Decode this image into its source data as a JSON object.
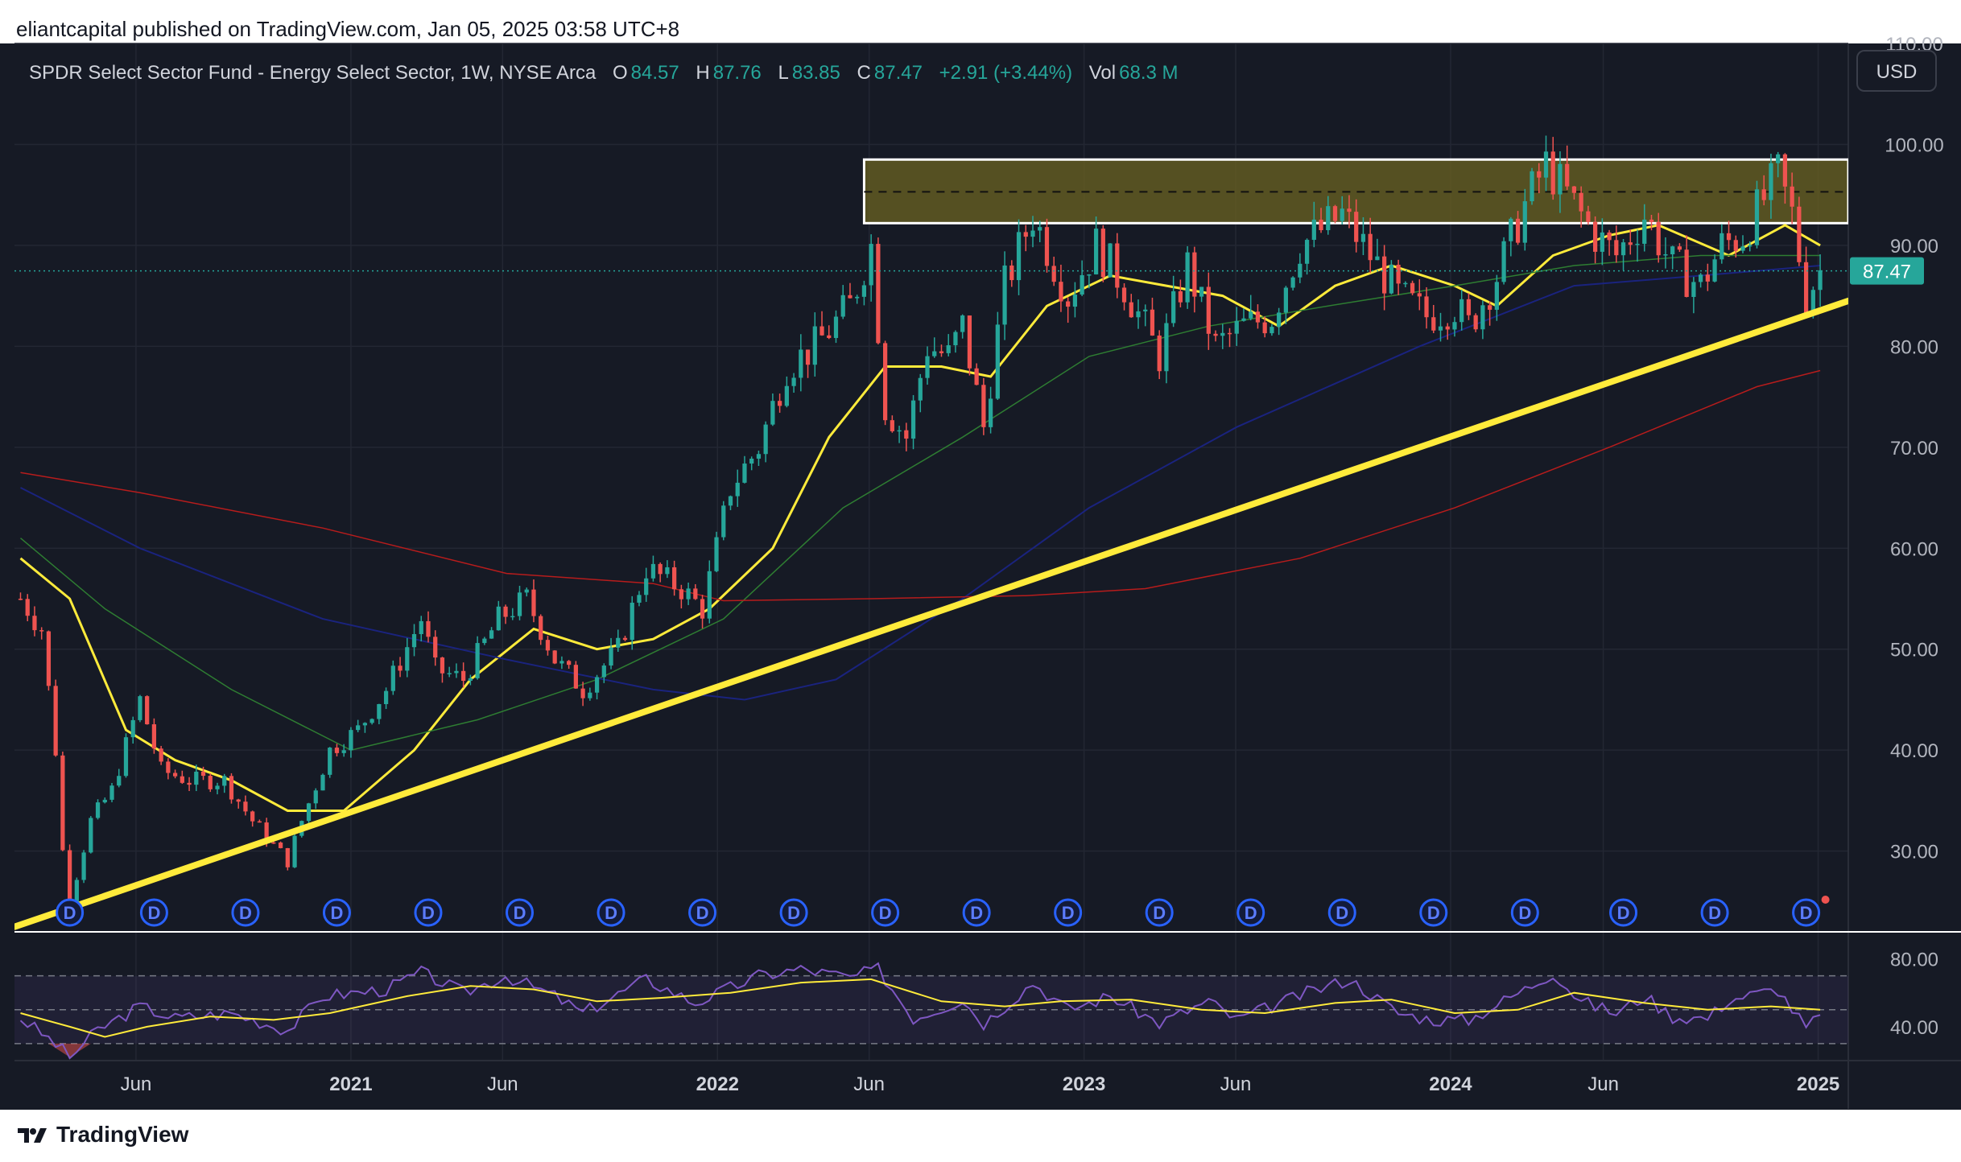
{
  "banner": "eliantcapital published on TradingView.com, Jan 05, 2025 03:58 UTC+8",
  "header": {
    "symbol": "SPDR Select Sector Fund - Energy Select Sector, 1W, NYSE Arca",
    "o_label": "O",
    "o_value": "84.57",
    "h_label": "H",
    "h_value": "87.76",
    "l_label": "L",
    "l_value": "83.85",
    "c_label": "C",
    "c_value": "87.47",
    "change": "+2.91 (+3.44%)",
    "vol_label": "Vol",
    "vol_value": "68.3 M"
  },
  "currency_button": "USD",
  "brand": "TradingView",
  "colors": {
    "background": "#161a25",
    "up": "#26a69a",
    "down": "#ef5350",
    "ma_yellow": "#ffeb3b",
    "ma_green": "#2e7d32",
    "ma_blue": "#1a237e",
    "ma_red": "#b71c1c",
    "trendline": "#ffeb3b",
    "resistance_zone": "#6b6321",
    "rsi_line": "#7e57c2",
    "rsi_ma": "#ffeb3b",
    "last_price_badge": "#26a69a",
    "dividend_marker": "#2962ff"
  },
  "chart_data": {
    "type": "candlestick",
    "interval": "1W",
    "price_axis": {
      "min": 22,
      "max": 110,
      "ticks": [
        "30.00",
        "40.00",
        "50.00",
        "60.00",
        "70.00",
        "80.00",
        "90.00",
        "100.00",
        "110.00"
      ]
    },
    "time_axis": {
      "start": "2020-02-01",
      "end": "2025-01-31",
      "labels": [
        {
          "label": "Jun",
          "date": "2020-06-01",
          "bold": false
        },
        {
          "label": "2021",
          "date": "2021-01-01",
          "bold": true
        },
        {
          "label": "Jun",
          "date": "2021-06-01",
          "bold": false
        },
        {
          "label": "2022",
          "date": "2022-01-01",
          "bold": true
        },
        {
          "label": "Jun",
          "date": "2022-06-01",
          "bold": false
        },
        {
          "label": "2023",
          "date": "2023-01-01",
          "bold": true
        },
        {
          "label": "Jun",
          "date": "2023-06-01",
          "bold": false
        },
        {
          "label": "2024",
          "date": "2024-01-01",
          "bold": true
        },
        {
          "label": "Jun",
          "date": "2024-06-01",
          "bold": false
        },
        {
          "label": "2025",
          "date": "2025-01-01",
          "bold": true
        }
      ]
    },
    "last_price": "87.47",
    "price_path": [
      [
        "2020-02-07",
        55
      ],
      [
        "2020-02-28",
        52
      ],
      [
        "2020-03-13",
        40
      ],
      [
        "2020-03-20",
        30
      ],
      [
        "2020-03-27",
        25
      ],
      [
        "2020-04-17",
        33
      ],
      [
        "2020-05-08",
        36
      ],
      [
        "2020-06-05",
        45
      ],
      [
        "2020-06-26",
        38
      ],
      [
        "2020-07-24",
        37
      ],
      [
        "2020-08-28",
        37
      ],
      [
        "2020-09-25",
        33
      ],
      [
        "2020-10-30",
        29
      ],
      [
        "2020-11-13",
        33
      ],
      [
        "2020-12-11",
        40
      ],
      [
        "2021-01-08",
        42
      ],
      [
        "2021-02-05",
        46
      ],
      [
        "2021-03-12",
        53
      ],
      [
        "2021-03-26",
        48
      ],
      [
        "2021-04-23",
        47
      ],
      [
        "2021-05-28",
        53
      ],
      [
        "2021-06-25",
        55
      ],
      [
        "2021-07-23",
        49
      ],
      [
        "2021-08-20",
        46
      ],
      [
        "2021-09-24",
        50
      ],
      [
        "2021-10-22",
        58
      ],
      [
        "2021-11-26",
        56
      ],
      [
        "2021-12-17",
        54
      ],
      [
        "2022-01-14",
        66
      ],
      [
        "2022-02-11",
        70
      ],
      [
        "2022-03-11",
        78
      ],
      [
        "2022-04-08",
        80
      ],
      [
        "2022-05-13",
        84
      ],
      [
        "2022-06-03",
        90
      ],
      [
        "2022-06-17",
        74
      ],
      [
        "2022-07-08",
        71
      ],
      [
        "2022-07-29",
        80
      ],
      [
        "2022-08-19",
        79
      ],
      [
        "2022-09-02",
        82
      ],
      [
        "2022-09-23",
        72
      ],
      [
        "2022-10-14",
        86
      ],
      [
        "2022-11-11",
        93
      ],
      [
        "2022-12-16",
        85
      ],
      [
        "2023-01-13",
        90
      ],
      [
        "2023-02-10",
        86
      ],
      [
        "2023-03-17",
        79
      ],
      [
        "2023-04-14",
        88
      ],
      [
        "2023-05-12",
        80
      ],
      [
        "2023-06-09",
        82
      ],
      [
        "2023-07-07",
        83
      ],
      [
        "2023-08-04",
        90
      ],
      [
        "2023-09-15",
        93
      ],
      [
        "2023-10-13",
        89
      ],
      [
        "2023-11-10",
        85
      ],
      [
        "2023-12-08",
        83
      ],
      [
        "2024-01-05",
        84
      ],
      [
        "2024-01-19",
        82
      ],
      [
        "2024-02-16",
        87
      ],
      [
        "2024-03-15",
        94
      ],
      [
        "2024-04-05",
        98
      ],
      [
        "2024-04-26",
        95
      ],
      [
        "2024-05-24",
        91
      ],
      [
        "2024-06-14",
        89
      ],
      [
        "2024-07-12",
        93
      ],
      [
        "2024-08-09",
        88
      ],
      [
        "2024-09-06",
        86
      ],
      [
        "2024-09-27",
        90
      ],
      [
        "2024-10-18",
        91
      ],
      [
        "2024-11-22",
        97
      ],
      [
        "2024-12-06",
        93
      ],
      [
        "2024-12-20",
        85
      ],
      [
        "2025-01-03",
        87.47
      ]
    ],
    "moving_averages": [
      {
        "color": "#ffeb3b",
        "width": 3,
        "points": [
          [
            "2020-02-07",
            59
          ],
          [
            "2020-03-27",
            55
          ],
          [
            "2020-05-22",
            42
          ],
          [
            "2020-07-10",
            39
          ],
          [
            "2020-09-04",
            37
          ],
          [
            "2020-10-30",
            34
          ],
          [
            "2020-12-25",
            34
          ],
          [
            "2021-03-05",
            40
          ],
          [
            "2021-04-30",
            47
          ],
          [
            "2021-07-02",
            52
          ],
          [
            "2021-09-03",
            50
          ],
          [
            "2021-10-29",
            51
          ],
          [
            "2021-12-24",
            54
          ],
          [
            "2022-02-25",
            60
          ],
          [
            "2022-04-22",
            71
          ],
          [
            "2022-06-17",
            78
          ],
          [
            "2022-08-12",
            78
          ],
          [
            "2022-09-30",
            77
          ],
          [
            "2022-11-25",
            84
          ],
          [
            "2023-01-27",
            87
          ],
          [
            "2023-03-24",
            86
          ],
          [
            "2023-05-19",
            85
          ],
          [
            "2023-07-14",
            82
          ],
          [
            "2023-09-08",
            86
          ],
          [
            "2023-11-03",
            88
          ],
          [
            "2024-01-05",
            86
          ],
          [
            "2024-02-16",
            84
          ],
          [
            "2024-04-12",
            89
          ],
          [
            "2024-06-07",
            91
          ],
          [
            "2024-07-26",
            92
          ],
          [
            "2024-10-04",
            89
          ],
          [
            "2024-11-29",
            92
          ],
          [
            "2025-01-03",
            90
          ]
        ]
      },
      {
        "color": "#2e7d32",
        "width": 1.5,
        "points": [
          [
            "2020-02-07",
            61
          ],
          [
            "2020-05-01",
            54
          ],
          [
            "2020-09-04",
            46
          ],
          [
            "2021-01-01",
            40
          ],
          [
            "2021-05-07",
            43
          ],
          [
            "2021-09-03",
            47
          ],
          [
            "2022-01-07",
            53
          ],
          [
            "2022-05-06",
            64
          ],
          [
            "2022-09-02",
            71
          ],
          [
            "2023-01-06",
            79
          ],
          [
            "2023-05-05",
            82
          ],
          [
            "2023-09-01",
            84
          ],
          [
            "2024-01-05",
            86
          ],
          [
            "2024-05-03",
            88
          ],
          [
            "2024-09-06",
            89
          ],
          [
            "2025-01-03",
            89
          ]
        ]
      },
      {
        "color": "#1a237e",
        "width": 2,
        "points": [
          [
            "2020-02-07",
            66
          ],
          [
            "2020-06-05",
            60
          ],
          [
            "2020-12-04",
            53
          ],
          [
            "2021-06-04",
            49
          ],
          [
            "2021-10-29",
            46
          ],
          [
            "2022-01-28",
            45
          ],
          [
            "2022-04-29",
            47
          ],
          [
            "2022-09-02",
            55
          ],
          [
            "2023-01-06",
            64
          ],
          [
            "2023-06-02",
            72
          ],
          [
            "2023-12-01",
            80
          ],
          [
            "2024-05-03",
            86
          ],
          [
            "2024-09-06",
            87
          ],
          [
            "2025-01-03",
            88
          ]
        ]
      },
      {
        "color": "#b71c1c",
        "width": 1.5,
        "points": [
          [
            "2020-02-07",
            67.5
          ],
          [
            "2020-06-05",
            65.5
          ],
          [
            "2020-12-04",
            62
          ],
          [
            "2021-06-05",
            57.5
          ],
          [
            "2021-10-29",
            56.5
          ],
          [
            "2022-01-07",
            54.8
          ],
          [
            "2022-06-03",
            55
          ],
          [
            "2022-11-04",
            55.3
          ],
          [
            "2023-03-03",
            56
          ],
          [
            "2023-08-04",
            59
          ],
          [
            "2024-01-05",
            64
          ],
          [
            "2024-06-07",
            70
          ],
          [
            "2024-11-01",
            76
          ],
          [
            "2025-01-03",
            77.6
          ]
        ]
      }
    ],
    "trendline": {
      "from": [
        "2020-02-01",
        22.5
      ],
      "to": [
        "2025-01-31",
        84.5
      ]
    },
    "resistance_zone": {
      "from": "2022-05-27",
      "to": "2025-01-31",
      "low": 92.2,
      "high": 98.5,
      "mid": 95.3
    },
    "dividend_markers": [
      "2020-03-27",
      "2020-06-19",
      "2020-09-18",
      "2020-12-18",
      "2021-03-19",
      "2021-06-18",
      "2021-09-17",
      "2021-12-17",
      "2022-03-18",
      "2022-06-17",
      "2022-09-16",
      "2022-12-16",
      "2023-03-17",
      "2023-06-16",
      "2023-09-15",
      "2023-12-15",
      "2024-03-15",
      "2024-06-21",
      "2024-09-20",
      "2024-12-20"
    ],
    "dividend_label": "D",
    "rsi": {
      "axis": {
        "min": 20,
        "max": 95,
        "ticks": [
          "40.00",
          "80.00"
        ]
      },
      "band_upper": 70,
      "band_lower": 30,
      "band_mid": 50,
      "line": [
        [
          "2020-02-07",
          45
        ],
        [
          "2020-03-13",
          30
        ],
        [
          "2020-03-27",
          22
        ],
        [
          "2020-04-24",
          38
        ],
        [
          "2020-06-05",
          52
        ],
        [
          "2020-07-10",
          45
        ],
        [
          "2020-09-04",
          48
        ],
        [
          "2020-10-30",
          38
        ],
        [
          "2020-12-04",
          58
        ],
        [
          "2021-02-05",
          62
        ],
        [
          "2021-03-12",
          72
        ],
        [
          "2021-04-23",
          60
        ],
        [
          "2021-06-04",
          70
        ],
        [
          "2021-07-23",
          58
        ],
        [
          "2021-08-20",
          48
        ],
        [
          "2021-10-22",
          68
        ],
        [
          "2021-12-10",
          54
        ],
        [
          "2022-02-11",
          70
        ],
        [
          "2022-03-25",
          74
        ],
        [
          "2022-05-13",
          69
        ],
        [
          "2022-06-10",
          74
        ],
        [
          "2022-07-15",
          45
        ],
        [
          "2022-09-02",
          56
        ],
        [
          "2022-09-23",
          42
        ],
        [
          "2022-11-11",
          66
        ],
        [
          "2022-12-16",
          50
        ],
        [
          "2023-01-27",
          58
        ],
        [
          "2023-03-17",
          42
        ],
        [
          "2023-05-05",
          55
        ],
        [
          "2023-06-02",
          44
        ],
        [
          "2023-08-11",
          60
        ],
        [
          "2023-09-22",
          68
        ],
        [
          "2023-11-10",
          48
        ],
        [
          "2023-12-15",
          44
        ],
        [
          "2024-01-19",
          44
        ],
        [
          "2024-03-15",
          62
        ],
        [
          "2024-04-12",
          72
        ],
        [
          "2024-05-10",
          55
        ],
        [
          "2024-06-14",
          48
        ],
        [
          "2024-07-12",
          58
        ],
        [
          "2024-08-09",
          46
        ],
        [
          "2024-09-13",
          45
        ],
        [
          "2024-10-04",
          56
        ],
        [
          "2024-11-22",
          62
        ],
        [
          "2024-12-20",
          39
        ],
        [
          "2025-01-03",
          46
        ]
      ],
      "ma": [
        [
          "2020-02-07",
          48
        ],
        [
          "2020-03-27",
          40
        ],
        [
          "2020-05-01",
          34
        ],
        [
          "2020-06-12",
          40
        ],
        [
          "2020-08-14",
          46
        ],
        [
          "2020-10-16",
          44
        ],
        [
          "2020-12-11",
          48
        ],
        [
          "2021-02-26",
          58
        ],
        [
          "2021-04-30",
          64
        ],
        [
          "2021-07-02",
          62
        ],
        [
          "2021-09-03",
          55
        ],
        [
          "2021-11-05",
          57
        ],
        [
          "2022-01-14",
          60
        ],
        [
          "2022-03-25",
          66
        ],
        [
          "2022-06-03",
          68
        ],
        [
          "2022-08-12",
          55
        ],
        [
          "2022-10-14",
          52
        ],
        [
          "2022-12-09",
          55
        ],
        [
          "2023-02-17",
          56
        ],
        [
          "2023-04-28",
          50
        ],
        [
          "2023-06-30",
          48
        ],
        [
          "2023-09-08",
          54
        ],
        [
          "2023-11-03",
          56
        ],
        [
          "2024-01-05",
          48
        ],
        [
          "2024-03-08",
          50
        ],
        [
          "2024-05-03",
          60
        ],
        [
          "2024-07-12",
          54
        ],
        [
          "2024-09-13",
          50
        ],
        [
          "2024-11-15",
          52
        ],
        [
          "2025-01-03",
          50
        ]
      ]
    }
  }
}
